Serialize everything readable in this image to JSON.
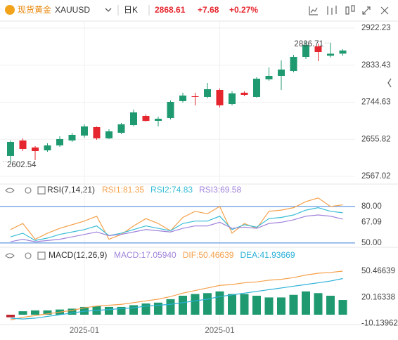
{
  "header": {
    "name": "现货黄金",
    "symbol": "XAUUSD",
    "period": "日K",
    "price": "2868.61",
    "change": "+7.68",
    "change_pct": "+0.27%"
  },
  "chart_data": [
    {
      "type": "candlestick",
      "up_color": "#1f9a70",
      "down_color": "#e6262e",
      "categories": [
        null,
        null,
        null,
        null,
        null,
        null,
        "2025-01",
        null,
        null,
        null,
        null,
        null,
        null,
        null,
        null,
        null,
        null,
        "2025-01",
        null,
        null,
        null,
        null,
        null,
        null,
        null,
        null,
        null,
        null
      ],
      "open": [
        2615.9,
        2652.9,
        2636.1,
        2629.3,
        2641.1,
        2652.9,
        2664.7,
        2684.9,
        2658.0,
        2671.4,
        2689.9,
        2711.8,
        2700.0,
        2706.8,
        2747.2,
        2759.0,
        2757.3,
        2774.1,
        2740.4,
        2767.4,
        2757.3,
        2799.4,
        2807.8,
        2819.6,
        2853.2,
        2878.5,
        2856.0,
        2861.0
      ],
      "high": [
        2652.9,
        2658.0,
        2639.4,
        2646.2,
        2663.0,
        2671.4,
        2691.6,
        2686.6,
        2679.8,
        2695.0,
        2727.0,
        2715.2,
        2710.0,
        2748.9,
        2767.4,
        2767.4,
        2791.0,
        2777.5,
        2770.7,
        2770.7,
        2804.4,
        2828.0,
        2844.8,
        2858.3,
        2890.3,
        2885.2,
        2886.71,
        2872.0
      ],
      "low": [
        2602.54,
        2627.6,
        2605.8,
        2626.0,
        2637.7,
        2649.5,
        2659.6,
        2654.6,
        2656.3,
        2668.1,
        2686.6,
        2698.4,
        2686.6,
        2703.4,
        2743.8,
        2737.1,
        2753.9,
        2732.0,
        2737.1,
        2759.0,
        2755.6,
        2796.0,
        2774.1,
        2816.2,
        2848.2,
        2843.1,
        2852.0,
        2856.0
      ],
      "close": [
        2649.5,
        2632.7,
        2627.6,
        2641.1,
        2656.3,
        2666.4,
        2686.6,
        2658.0,
        2674.8,
        2691.6,
        2720.2,
        2699.8,
        2705.0,
        2745.5,
        2760.6,
        2757.3,
        2775.8,
        2737.1,
        2765.7,
        2762.3,
        2801.0,
        2807.8,
        2822.9,
        2853.2,
        2881.8,
        2865.0,
        2860.93,
        2868.61
      ],
      "ylim": [
        2548.5,
        2939.1
      ],
      "yticks": [
        2922.23,
        2833.43,
        2744.63,
        2655.82,
        2567.02
      ],
      "grid": true,
      "annotations": [
        {
          "text": "2886.71",
          "index": 26,
          "field": "high"
        },
        {
          "text": "2602.54",
          "index": 0,
          "field": "low"
        }
      ]
    },
    {
      "type": "line",
      "title": "RSI(7,14,21)",
      "ylim": [
        47.58,
        89.2
      ],
      "yticks": [
        {
          "value": 80,
          "label": "80.00"
        },
        67.09,
        {
          "value": 50,
          "label": "50.00"
        }
      ],
      "levels": [
        80,
        50
      ],
      "level_color": "#3b7fd9",
      "series": [
        {
          "label": "RSI1:81.35",
          "color": "#f5a04a",
          "values": [
            61,
            66,
            53,
            58,
            62,
            65,
            68,
            72,
            53,
            57,
            64,
            70,
            66,
            60,
            71,
            76,
            74,
            80,
            58,
            66,
            62,
            76,
            77,
            79,
            84,
            87,
            80,
            81.35
          ]
        },
        {
          "label": "RSI2:74.83",
          "color": "#38bdd6",
          "values": [
            55,
            58,
            52,
            54,
            57,
            59,
            61,
            64,
            56,
            58,
            61,
            64,
            62,
            60,
            66,
            68,
            68,
            72,
            61,
            65,
            63,
            70,
            71,
            73,
            77,
            79,
            76,
            74.83
          ]
        },
        {
          "label": "RSI3:69.58",
          "color": "#a083db",
          "values": [
            51,
            53,
            51,
            52,
            53,
            55,
            57,
            59,
            56,
            57,
            59,
            61,
            60,
            59,
            62,
            64,
            64,
            67,
            62,
            63,
            62,
            66,
            67,
            69,
            72,
            73,
            72,
            69.58
          ]
        }
      ]
    },
    {
      "type": "macd",
      "title": "MACD(12,26,9)",
      "ylim": [
        -11.4,
        75.7
      ],
      "yticks": [
        50.46639,
        20.16338,
        -10.13962
      ],
      "series": [
        {
          "label": "MACD:17.05940",
          "kind": "bar",
          "color": "#a083db",
          "up_color": "#1f9a70",
          "down_color": "#c0262e",
          "values": [
            -3,
            4,
            5,
            5,
            6,
            7,
            9,
            10,
            9,
            9,
            11,
            13,
            14,
            18,
            22,
            24,
            25,
            27,
            24,
            24,
            22,
            20,
            20,
            23,
            27,
            25,
            22,
            17.0594
          ]
        },
        {
          "label": "DIF:50.46639",
          "kind": "line",
          "color": "#f5a04a",
          "values": [
            -6,
            -3,
            -1,
            1,
            3,
            5,
            8,
            10,
            11,
            12,
            14,
            16,
            18,
            21,
            25,
            28,
            31,
            34,
            35,
            37,
            38,
            40,
            41,
            43,
            46,
            48,
            49,
            50.46639
          ]
        },
        {
          "label": "DEA:41.93669",
          "kind": "line",
          "color": "#29b0d8",
          "values": [
            -4,
            -5,
            -4,
            -2,
            0,
            2,
            4,
            5,
            6,
            7,
            8,
            10,
            11,
            12,
            14,
            16,
            18,
            21,
            23,
            25,
            27,
            29,
            31,
            33,
            35,
            37,
            39,
            41.93669
          ]
        }
      ]
    }
  ]
}
